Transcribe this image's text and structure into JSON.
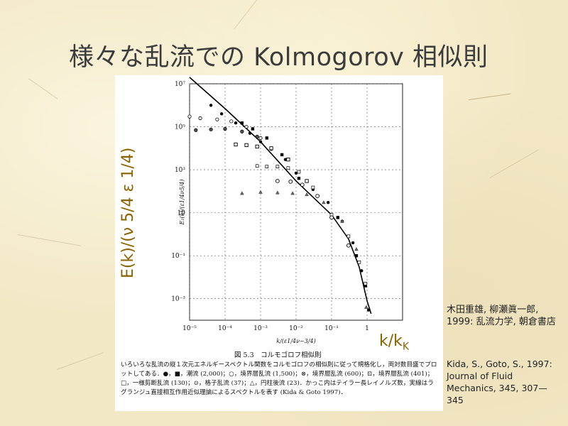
{
  "slide": {
    "title": "様々な乱流での Kolmogorov 相似則",
    "big_ylabel": "E(k)/(ν 5/4 ε 1/4)",
    "big_xlabel_main": "k/k",
    "big_xlabel_sub": "K",
    "citation_jp": "木田重雄, 柳瀬眞一郎, 1999: 乱流力学, 朝倉書店",
    "citation_en": "Kida, S., Goto, S., 1997: Journal of Fluid Mechanics, 345, 307—345"
  },
  "figure": {
    "caption_title": "図 5.3　コルモゴロフ相似則",
    "caption_body": "いろいろな乱流の縦１次元エネルギースペクトル関数をコルモゴロフの相似則に従って規格化し，両対数目盛でプロットしてある．●，■，潮流 (2,000)；○，境界層乱流 (1,500)；⊗，境界層乱流 (600)；⊡，境界層乱流 (401)；□，一様剪断乱流 (130)；⊙，格子乱流 (37)；△，円柱後流 (23)．かっこ内はテイラー長レイノルズ数，実線はラグランジュ直接相互作用近似理論によるスペクトルを表す (Kida & Goto 1997)．",
    "inner_ylabel": "E₁(k)/(ε1/4ν5/4)",
    "inner_xlabel": "k/(ε1/4ν−3/4)"
  },
  "chart_data": {
    "type": "scatter",
    "x_scale": "log",
    "y_scale": "log",
    "xlim": [
      1e-05,
      10
    ],
    "ylim": [
      0.0001,
      10000000
    ],
    "grid": true,
    "x_tick_labels": [
      "10⁻⁵",
      "10⁻⁴",
      "10⁻³",
      "10⁻²",
      "10⁻¹",
      "1"
    ],
    "y_tick_labels": [
      "10⁷",
      "10⁵",
      "10³",
      "10",
      "10⁻¹",
      "10⁻³"
    ],
    "curve": {
      "x": [
        1e-05,
        0.0001,
        0.001,
        0.01,
        0.1,
        0.3,
        0.6,
        1.0,
        1.3
      ],
      "y": [
        20000000,
        700000,
        20000,
        300,
        8,
        0.6,
        0.03,
        0.0008,
        0.0002
      ]
    },
    "series": [
      {
        "name": "●",
        "x": [
          4e-05,
          8e-05,
          0.0002,
          0.0005,
          0.001,
          0.002,
          0.005,
          0.01,
          0.03,
          0.08,
          0.2,
          0.4,
          0.7,
          1.1
        ],
        "y": [
          1000000,
          400000,
          150000,
          50000,
          20000,
          9000,
          3000,
          700,
          120,
          30,
          4,
          0.4,
          0.02,
          0.0003
        ]
      },
      {
        "name": "■",
        "x": [
          0.0003,
          0.0006,
          0.0015,
          0.004,
          0.012,
          0.04,
          0.15,
          0.5,
          0.9
        ],
        "y": [
          150000,
          80000,
          30000,
          5000,
          400,
          60,
          6,
          0.1,
          0.004
        ]
      },
      {
        "name": "○",
        "x": [
          1e-05,
          2e-05,
          6e-05,
          0.00015,
          0.0004,
          0.001
        ],
        "y": [
          300000,
          250000,
          220000,
          180000,
          100000,
          30000
        ]
      },
      {
        "name": "⊗",
        "x": [
          1.5e-05,
          4e-05,
          0.0001,
          0.0003,
          0.0008
        ],
        "y": [
          70000,
          75000,
          80000,
          60000,
          35000
        ]
      },
      {
        "name": "⊡",
        "x": [
          0.0002,
          0.0004,
          0.0008,
          0.002,
          0.006,
          0.02
        ],
        "y": [
          15000,
          14000,
          12000,
          10000,
          3000,
          300
        ]
      },
      {
        "name": "□",
        "x": [
          0.0008,
          0.0015,
          0.003,
          0.006,
          0.012,
          0.03,
          0.1,
          0.3,
          0.6,
          0.9
        ],
        "y": [
          1500,
          1400,
          1400,
          1200,
          800,
          150,
          8,
          0.8,
          0.05,
          0.005
        ]
      },
      {
        "name": "⊙",
        "x": [
          0.003,
          0.007,
          0.015,
          0.04,
          0.1,
          0.3
        ],
        "y": [
          300,
          280,
          200,
          60,
          6,
          0.3
        ]
      },
      {
        "name": "△",
        "x": [
          0.0003,
          0.001,
          0.003,
          0.008,
          0.02,
          0.06,
          0.2,
          0.5,
          0.95
        ],
        "y": [
          80,
          90,
          85,
          80,
          70,
          30,
          4,
          0.2,
          0.0004
        ]
      }
    ]
  }
}
